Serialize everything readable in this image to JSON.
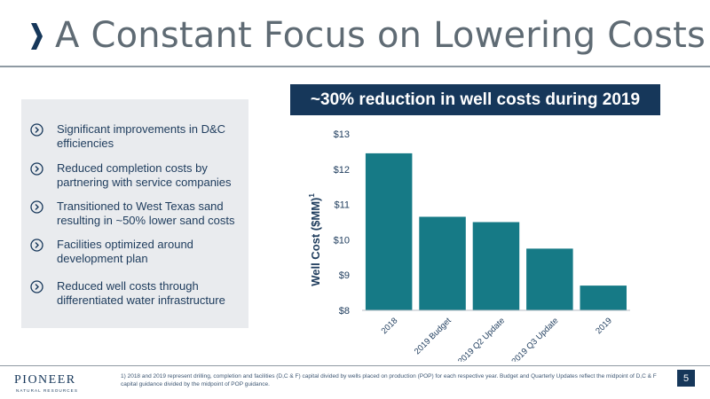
{
  "slide": {
    "title": "A Constant Focus on Lowering Costs",
    "banner": "~30% reduction in well costs during 2019",
    "bullets": [
      "Significant improvements in D&C efficiencies",
      "Reduced completion costs by partnering with service companies",
      "Transitioned to West Texas sand resulting in ~50% lower sand costs",
      "Facilities optimized around development plan",
      "Reduced well costs through differentiated water infrastructure"
    ],
    "footnote": "1) 2018 and 2019 represent drilling, completion and facilities (D,C & F) capital divided by wells placed on production (POP) for each respective year. Budget and Quarterly Updates reflect the midpoint of D,C & F capital guidance divided by the midpoint of POP guidance.",
    "page_number": "5",
    "logo": {
      "name": "PIONEER",
      "tagline": "NATURAL RESOURCES"
    }
  },
  "colors": {
    "bar": "#167a86",
    "banner": "#16375a",
    "title": "#5f6b74",
    "panel": "#e9ebee",
    "chevron": "#16375a",
    "bullet_icon": "#16375a"
  },
  "chart_data": {
    "type": "bar",
    "categories": [
      "2018",
      "2019 Budget",
      "2019 Q2 Update",
      "2019 Q3 Update",
      "2019"
    ],
    "values": [
      12.45,
      10.65,
      10.5,
      9.75,
      8.7
    ],
    "ylabel": "Well Cost ($MM)",
    "ylabel_superscript": "1",
    "ylim": [
      8,
      13
    ],
    "yticks": [
      "$8",
      "$9",
      "$10",
      "$11",
      "$12",
      "$13"
    ],
    "grid": false
  }
}
